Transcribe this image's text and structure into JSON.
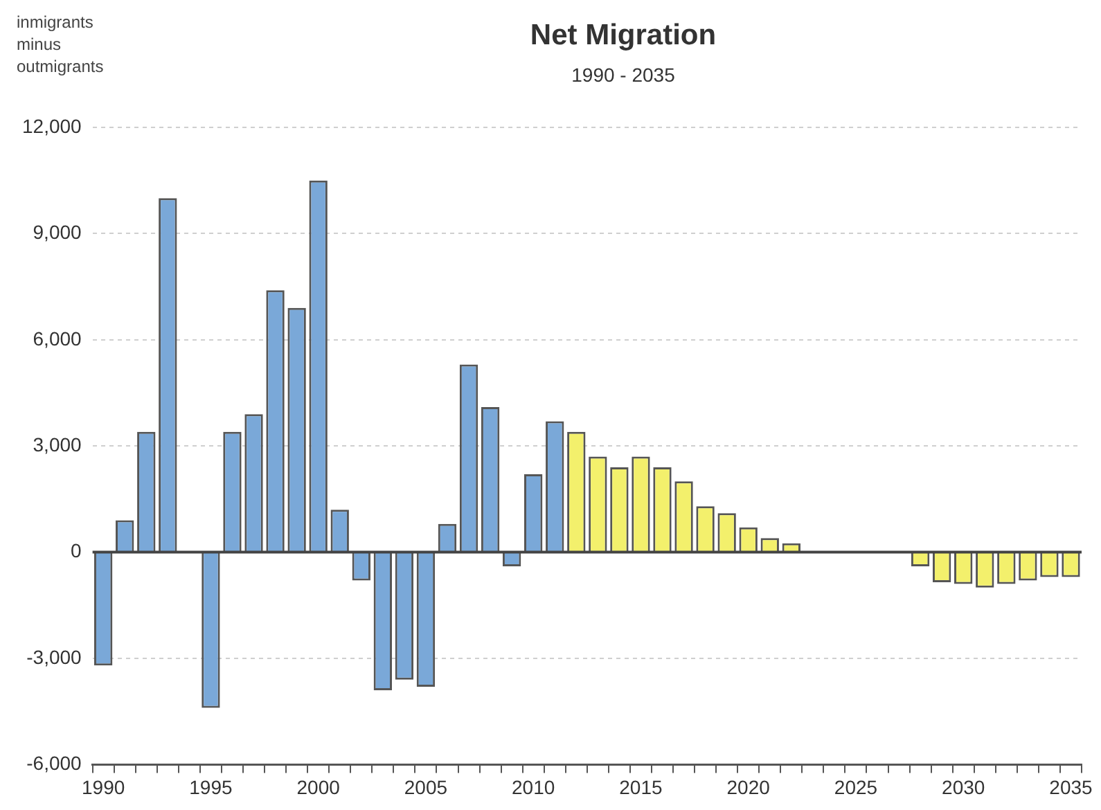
{
  "chart_data": {
    "type": "bar",
    "title": "Net Migration",
    "subtitle": "1990 - 2035",
    "ylabel": "inmigrants minus outmigrants",
    "categories": [
      "1990",
      null,
      null,
      null,
      null,
      "1995",
      null,
      null,
      null,
      null,
      "2000",
      null,
      null,
      null,
      null,
      "2005",
      null,
      null,
      null,
      null,
      "2010",
      null,
      null,
      null,
      null,
      "2015",
      null,
      null,
      null,
      null,
      "2020",
      null,
      null,
      null,
      null,
      "2025",
      null,
      null,
      null,
      null,
      "2030",
      null,
      null,
      null,
      null,
      "2035"
    ],
    "values": [
      -3200,
      900,
      3400,
      10000,
      null,
      -4400,
      3400,
      3900,
      7400,
      6900,
      10500,
      1200,
      -800,
      -3900,
      -3600,
      -3800,
      800,
      5300,
      4100,
      -400,
      2200,
      3700,
      3400,
      2700,
      2400,
      2700,
      2400,
      2000,
      1300,
      1100,
      700,
      400,
      250,
      null,
      null,
      null,
      null,
      0,
      -400,
      -850,
      -900,
      -1000,
      -900,
      -800,
      -700,
      -700
    ],
    "colors": [
      "#7aa8d8",
      "#7aa8d8",
      "#7aa8d8",
      "#7aa8d8",
      "#7aa8d8",
      "#7aa8d8",
      "#7aa8d8",
      "#7aa8d8",
      "#7aa8d8",
      "#7aa8d8",
      "#7aa8d8",
      "#7aa8d8",
      "#7aa8d8",
      "#7aa8d8",
      "#7aa8d8",
      "#7aa8d8",
      "#7aa8d8",
      "#7aa8d8",
      "#7aa8d8",
      "#7aa8d8",
      "#7aa8d8",
      "#7aa8d8",
      "#f3f06c",
      "#f3f06c",
      "#f3f06c",
      "#f3f06c",
      "#f3f06c",
      "#f3f06c",
      "#f3f06c",
      "#f3f06c",
      "#f3f06c",
      "#f3f06c",
      "#f3f06c",
      "#f3f06c",
      "#f3f06c",
      "#f3f06c",
      "#f3f06c",
      "#f3f06c",
      "#f3f06c",
      "#f3f06c",
      "#f3f06c",
      "#f3f06c",
      "#f3f06c",
      "#f3f06c",
      "#f3f06c",
      "#f3f06c"
    ],
    "ylim": [
      -6000,
      12000
    ],
    "yticks": [
      {
        "value": -6000,
        "label": "-6,000"
      },
      {
        "value": -3000,
        "label": "-3,000"
      },
      0,
      {
        "value": 3000,
        "label": "3,000"
      },
      {
        "value": 6000,
        "label": "6,000"
      },
      {
        "value": 9000,
        "label": "9,000"
      },
      {
        "value": 12000,
        "label": "12,000"
      }
    ],
    "ref_lines": [
      {
        "axis": "y",
        "value": 0,
        "color": "#444444"
      }
    ],
    "grid": "y",
    "legend": false
  }
}
